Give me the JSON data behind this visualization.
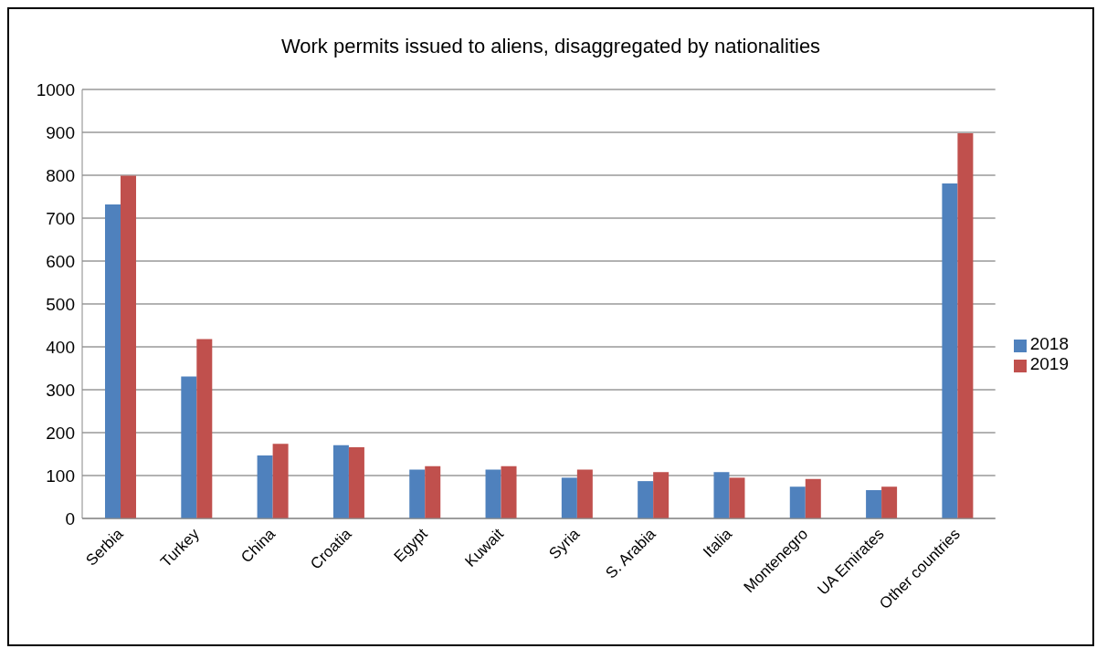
{
  "chart_data": {
    "type": "bar",
    "title": "Work permits issued to aliens, disaggregated by nationalities",
    "categories": [
      "Serbia",
      "Turkey",
      "China",
      "Croatia",
      "Egypt",
      "Kuwait",
      "Syria",
      "S. Arabia",
      "Italia",
      "Montenegro",
      "UA Emirates",
      "Other countries"
    ],
    "series": [
      {
        "name": "2018",
        "color": "#4f81bd",
        "values": [
          732,
          331,
          147,
          171,
          114,
          114,
          95,
          87,
          108,
          74,
          66,
          781
        ]
      },
      {
        "name": "2019",
        "color": "#c0504d",
        "values": [
          799,
          418,
          174,
          166,
          122,
          122,
          114,
          108,
          95,
          92,
          74,
          898
        ]
      }
    ],
    "ylim": [
      0,
      1000
    ],
    "yticks": [
      0,
      100,
      200,
      300,
      400,
      500,
      600,
      700,
      800,
      900,
      1000
    ],
    "grid": "y",
    "legend": "right"
  }
}
